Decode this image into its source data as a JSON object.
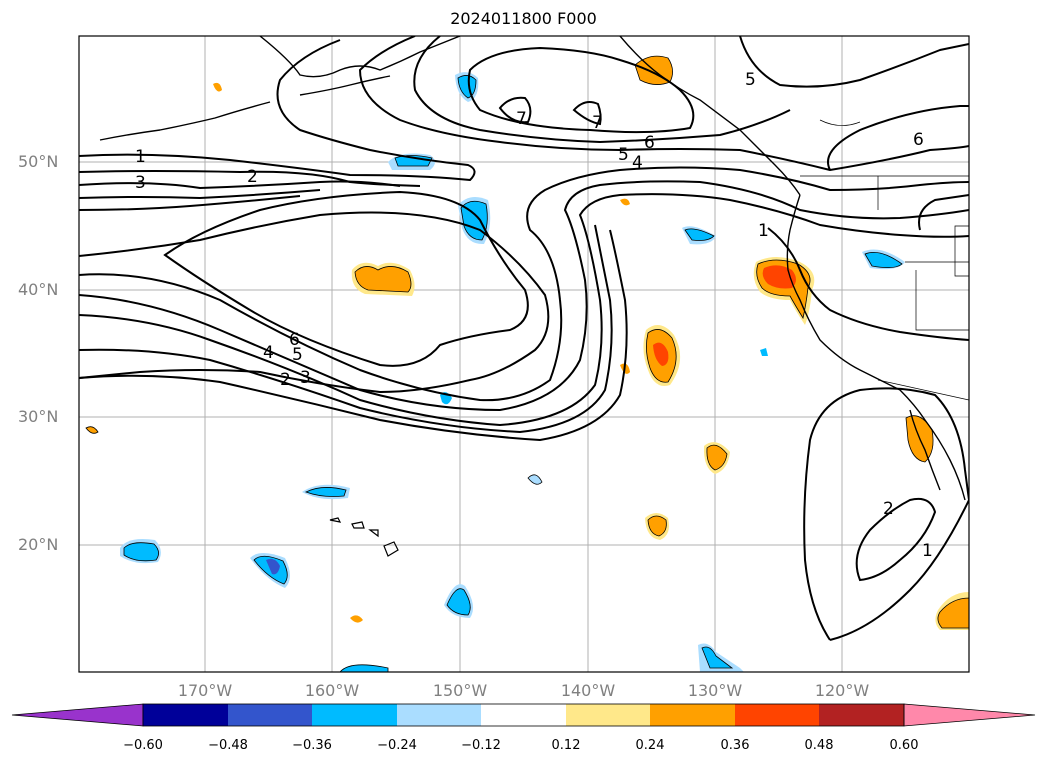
{
  "title": "2024011800 F000",
  "lat_labels": [
    "50°N",
    "40°N",
    "30°N",
    "20°N"
  ],
  "lon_labels": [
    "170°W",
    "160°W",
    "150°W",
    "140°W",
    "130°W",
    "120°W"
  ],
  "colorbar": {
    "ticks": [
      "−0.60",
      "−0.48",
      "−0.36",
      "−0.24",
      "−0.12",
      "0.12",
      "0.24",
      "0.36",
      "0.48",
      "0.60"
    ],
    "colors": [
      "#9933cc",
      "#000099",
      "#3355cc",
      "#00bbff",
      "#aaddff",
      "#ffffff",
      "#ffe88a",
      "#ffa000",
      "#ff4400",
      "#b22222",
      "#ff88aa"
    ]
  },
  "contour_labels": [
    "1",
    "2",
    "3",
    "4",
    "5",
    "6",
    "7"
  ]
}
